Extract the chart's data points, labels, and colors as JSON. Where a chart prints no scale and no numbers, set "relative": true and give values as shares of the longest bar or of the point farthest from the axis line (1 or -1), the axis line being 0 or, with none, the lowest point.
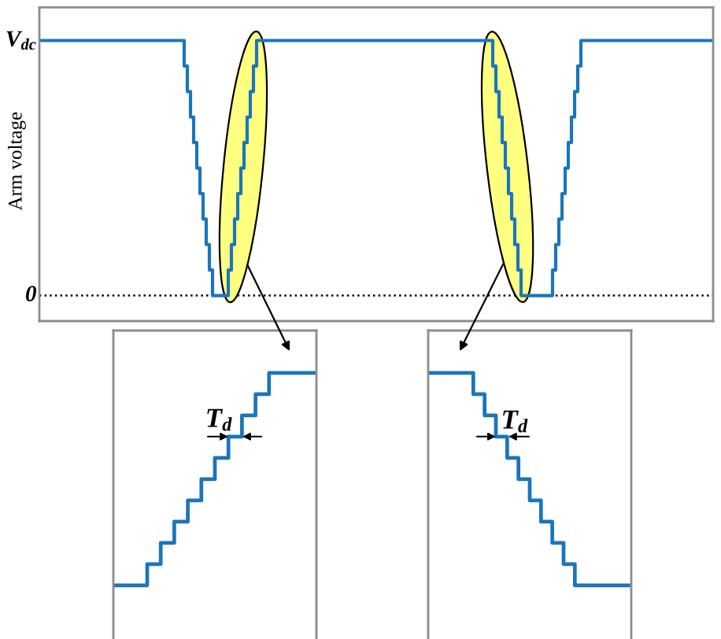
{
  "chart_data": [
    {
      "type": "step",
      "relative": true,
      "ylabel": "Arm voltage",
      "ref_lines": [
        {
          "axis": "y",
          "value": 0,
          "label": "0",
          "color": "#000000",
          "line_style": "dotted"
        }
      ],
      "annotations": [
        "V$_{dc}$"
      ],
      "color": "#1b75bc",
      "categories": [
        null,
        null,
        null,
        null,
        null,
        null,
        null,
        null,
        null,
        null,
        null,
        null,
        null,
        null,
        null,
        null,
        null,
        null,
        null,
        null,
        null,
        null,
        null,
        null,
        null,
        null,
        null,
        null,
        null,
        null,
        null,
        null,
        null,
        null,
        null,
        null,
        null,
        null,
        null,
        null,
        null,
        null,
        null,
        null,
        null,
        null,
        null,
        null,
        null,
        null,
        null,
        null,
        null,
        null,
        null,
        null,
        null,
        null,
        null,
        null,
        null,
        null,
        null,
        null,
        null,
        null,
        null,
        null,
        null,
        null,
        null,
        null,
        null,
        null,
        null,
        null,
        null,
        null,
        null,
        null,
        null,
        null,
        null,
        null,
        null,
        null,
        null,
        null,
        null,
        null,
        null,
        null,
        null,
        null,
        null,
        null,
        null,
        null,
        null,
        null,
        null,
        null,
        null,
        null,
        null,
        null,
        null,
        null,
        null,
        null,
        null,
        null,
        null,
        null,
        null,
        null,
        null,
        null,
        null,
        null,
        null,
        null,
        null,
        null,
        null,
        null,
        null,
        null,
        null,
        null,
        null,
        null,
        null,
        null,
        null,
        null,
        null,
        null,
        null,
        null,
        null,
        null,
        null,
        null,
        null,
        null,
        null,
        null,
        null,
        null,
        null,
        null,
        null,
        null,
        null,
        null,
        null,
        null,
        null,
        null,
        null,
        null,
        null,
        null,
        null,
        null,
        null,
        null,
        null,
        null,
        null,
        null,
        null,
        null,
        null,
        null,
        null,
        null,
        null,
        null,
        null,
        null,
        null,
        null,
        null,
        null,
        null,
        null,
        null,
        null,
        null,
        null,
        null,
        null,
        null,
        null,
        null,
        null,
        null,
        null,
        null,
        null,
        null,
        null,
        null,
        null,
        null,
        null,
        null,
        null,
        null,
        null,
        null,
        null
      ],
      "values": [
        1,
        1,
        1,
        1,
        1,
        1,
        1,
        1,
        1,
        1,
        1,
        1,
        1,
        1,
        1,
        1,
        1,
        1,
        1,
        1,
        1,
        1,
        1,
        1,
        1,
        1,
        1,
        1,
        1,
        1,
        1,
        1,
        1,
        1,
        1,
        1,
        1,
        1,
        1,
        1,
        1,
        1,
        1,
        1,
        1,
        1,
        0.9,
        0.8,
        0.7,
        0.6,
        0.5,
        0.4,
        0.3,
        0.2,
        0.1,
        0,
        0,
        0,
        0,
        0,
        0.1,
        0.2,
        0.3,
        0.4,
        0.5,
        0.6,
        0.7,
        0.8,
        0.9,
        1,
        1,
        1,
        1,
        1,
        1,
        1,
        1,
        1,
        1,
        1,
        1,
        1,
        1,
        1,
        1,
        1,
        1,
        1,
        1,
        1,
        1,
        1,
        1,
        1,
        1,
        1,
        1,
        1,
        1,
        1,
        1,
        1,
        1,
        1,
        1,
        1,
        1,
        1,
        1,
        1,
        1,
        1,
        1,
        1,
        1,
        1,
        1,
        1,
        1,
        1,
        1,
        1,
        1,
        1,
        1,
        1,
        1,
        1,
        1,
        1,
        1,
        1,
        1,
        1,
        1,
        1,
        1,
        1,
        1,
        1,
        1,
        1,
        1,
        1,
        0.9,
        0.8,
        0.7,
        0.6,
        0.5,
        0.4,
        0.3,
        0.2,
        0.1,
        0,
        0,
        0,
        0,
        0,
        0,
        0,
        0,
        0,
        0,
        0.1,
        0.2,
        0.3,
        0.4,
        0.5,
        0.6,
        0.7,
        0.8,
        0.9,
        1,
        1,
        1,
        1,
        1,
        1,
        1,
        1,
        1,
        1,
        1,
        1,
        1,
        1,
        1,
        1,
        1,
        1,
        1,
        1,
        1,
        1,
        1,
        1,
        1,
        1,
        1,
        1,
        1,
        1,
        1,
        1,
        1,
        1,
        1,
        1,
        1,
        1,
        1,
        1,
        1,
        1
      ]
    },
    {
      "type": "step",
      "relative": true,
      "color": "#1b75bc",
      "annotations": [
        "T$_{d}$"
      ],
      "categories": [
        null,
        null,
        null,
        null,
        null,
        null,
        null,
        null,
        null,
        null,
        null,
        null,
        null,
        null,
        null,
        null,
        null,
        null,
        null,
        null,
        null,
        null,
        null,
        null,
        null,
        null,
        null,
        null,
        null,
        null
      ],
      "values": [
        0,
        0,
        0,
        0,
        0,
        0.1,
        0.1,
        0.2,
        0.2,
        0.3,
        0.3,
        0.4,
        0.4,
        0.5,
        0.5,
        0.6,
        0.6,
        0.7,
        0.7,
        0.8,
        0.8,
        0.9,
        0.9,
        1,
        1,
        1,
        1,
        1,
        1,
        1
      ]
    },
    {
      "type": "step",
      "relative": true,
      "color": "#1b75bc",
      "annotations": [
        "T$_{d}$"
      ],
      "categories": [
        null,
        null,
        null,
        null,
        null,
        null,
        null,
        null,
        null,
        null,
        null,
        null,
        null,
        null,
        null,
        null,
        null,
        null,
        null,
        null,
        null,
        null,
        null,
        null,
        null,
        null,
        null,
        null,
        null,
        null,
        null,
        null,
        null,
        null,
        null,
        null
      ],
      "values": [
        1,
        1,
        1,
        1,
        1,
        1,
        1,
        1,
        0.9,
        0.9,
        0.8,
        0.8,
        0.7,
        0.7,
        0.6,
        0.6,
        0.5,
        0.5,
        0.4,
        0.4,
        0.3,
        0.3,
        0.2,
        0.2,
        0.1,
        0.1,
        0,
        0,
        0,
        0,
        0,
        0,
        0,
        0,
        0,
        0
      ]
    }
  ]
}
